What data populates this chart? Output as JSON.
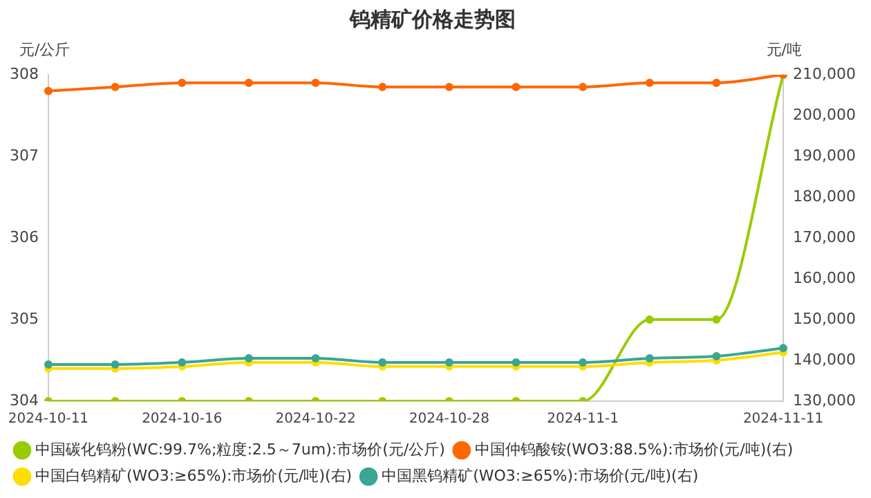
{
  "chart_data": {
    "type": "line",
    "title": "钨精矿价格走势图",
    "ylabel": "元/公斤",
    "y2label": "元/吨",
    "categories": [
      "2024-10-11",
      null,
      "2024-10-16",
      null,
      "2024-10-22",
      null,
      "2024-10-28",
      null,
      "2024-11-1",
      null,
      null,
      "2024-11-11"
    ],
    "series": [
      {
        "name": "中国碳化钨粉(WC:99.7%;粒度:2.5～7um):市场价(元/公斤)",
        "color": "#99cc00",
        "values": [
          304,
          304,
          304,
          304,
          304,
          304,
          304,
          304,
          304,
          305,
          305,
          308
        ]
      },
      {
        "name": "中国仲钨酸铵(WO3:88.5%):市场价(元/吨)(右)",
        "color": "#ff6600",
        "axis": "y2",
        "values": [
          206000,
          207000,
          208000,
          208000,
          208000,
          207000,
          207000,
          207000,
          207000,
          208000,
          208000,
          210000
        ]
      },
      {
        "name": "中国白钨精矿(WO3:≥65%):市场价(元/吨)(右)",
        "color": "#ffdd00",
        "axis": "y2",
        "values": [
          138000,
          138000,
          138500,
          139500,
          139500,
          138500,
          138500,
          138500,
          138500,
          139500,
          140000,
          142000
        ]
      },
      {
        "name": "中国黑钨精矿(WO3:≥65%):市场价(元/吨)(右)",
        "color": "#3aa693",
        "axis": "y2",
        "values": [
          139000,
          139000,
          139500,
          140500,
          140500,
          139500,
          139500,
          139500,
          139500,
          140500,
          141000,
          143000
        ]
      }
    ],
    "ylim": [
      304,
      308
    ],
    "yticks": [
      304,
      305,
      306,
      307,
      308
    ],
    "y2lim": [
      130000,
      210000
    ],
    "y2ticks": [
      {
        "value": 130000,
        "label": "130,000"
      },
      {
        "value": 140000,
        "label": "140,000"
      },
      {
        "value": 150000,
        "label": "150,000"
      },
      {
        "value": 160000,
        "label": "160,000"
      },
      {
        "value": 170000,
        "label": "170,000"
      },
      {
        "value": 180000,
        "label": "180,000"
      },
      {
        "value": 190000,
        "label": "190,000"
      },
      {
        "value": 200000,
        "label": "200,000"
      },
      {
        "value": 210000,
        "label": "210,000"
      }
    ],
    "grid": false,
    "legend": "bottom",
    "marker": "circle",
    "line_style": "solid"
  }
}
